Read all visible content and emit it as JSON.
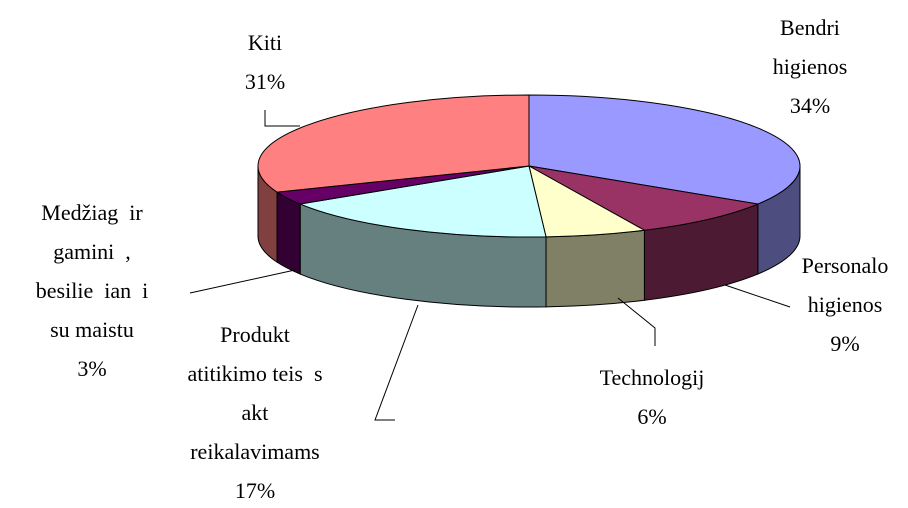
{
  "chart_data": {
    "type": "pie",
    "categories": [
      "Bendri\nhigienos",
      "Personalo\nhigienos",
      "Technologij",
      "Produkt\natitikimo teis  s\nakt\nreikalavimams",
      "Medžiag  ir\ngamini  ,\nbesilie  ian  i\nsu maistu",
      "Kiti"
    ],
    "values": [
      34,
      9,
      6,
      17,
      3,
      31
    ],
    "value_labels": [
      "34%",
      "9%",
      "6%",
      "17%",
      "3%",
      "31%"
    ],
    "colors": [
      "#9999ff",
      "#993366",
      "#ffffcc",
      "#ccffff",
      "#660066",
      "#ff8080"
    ]
  }
}
